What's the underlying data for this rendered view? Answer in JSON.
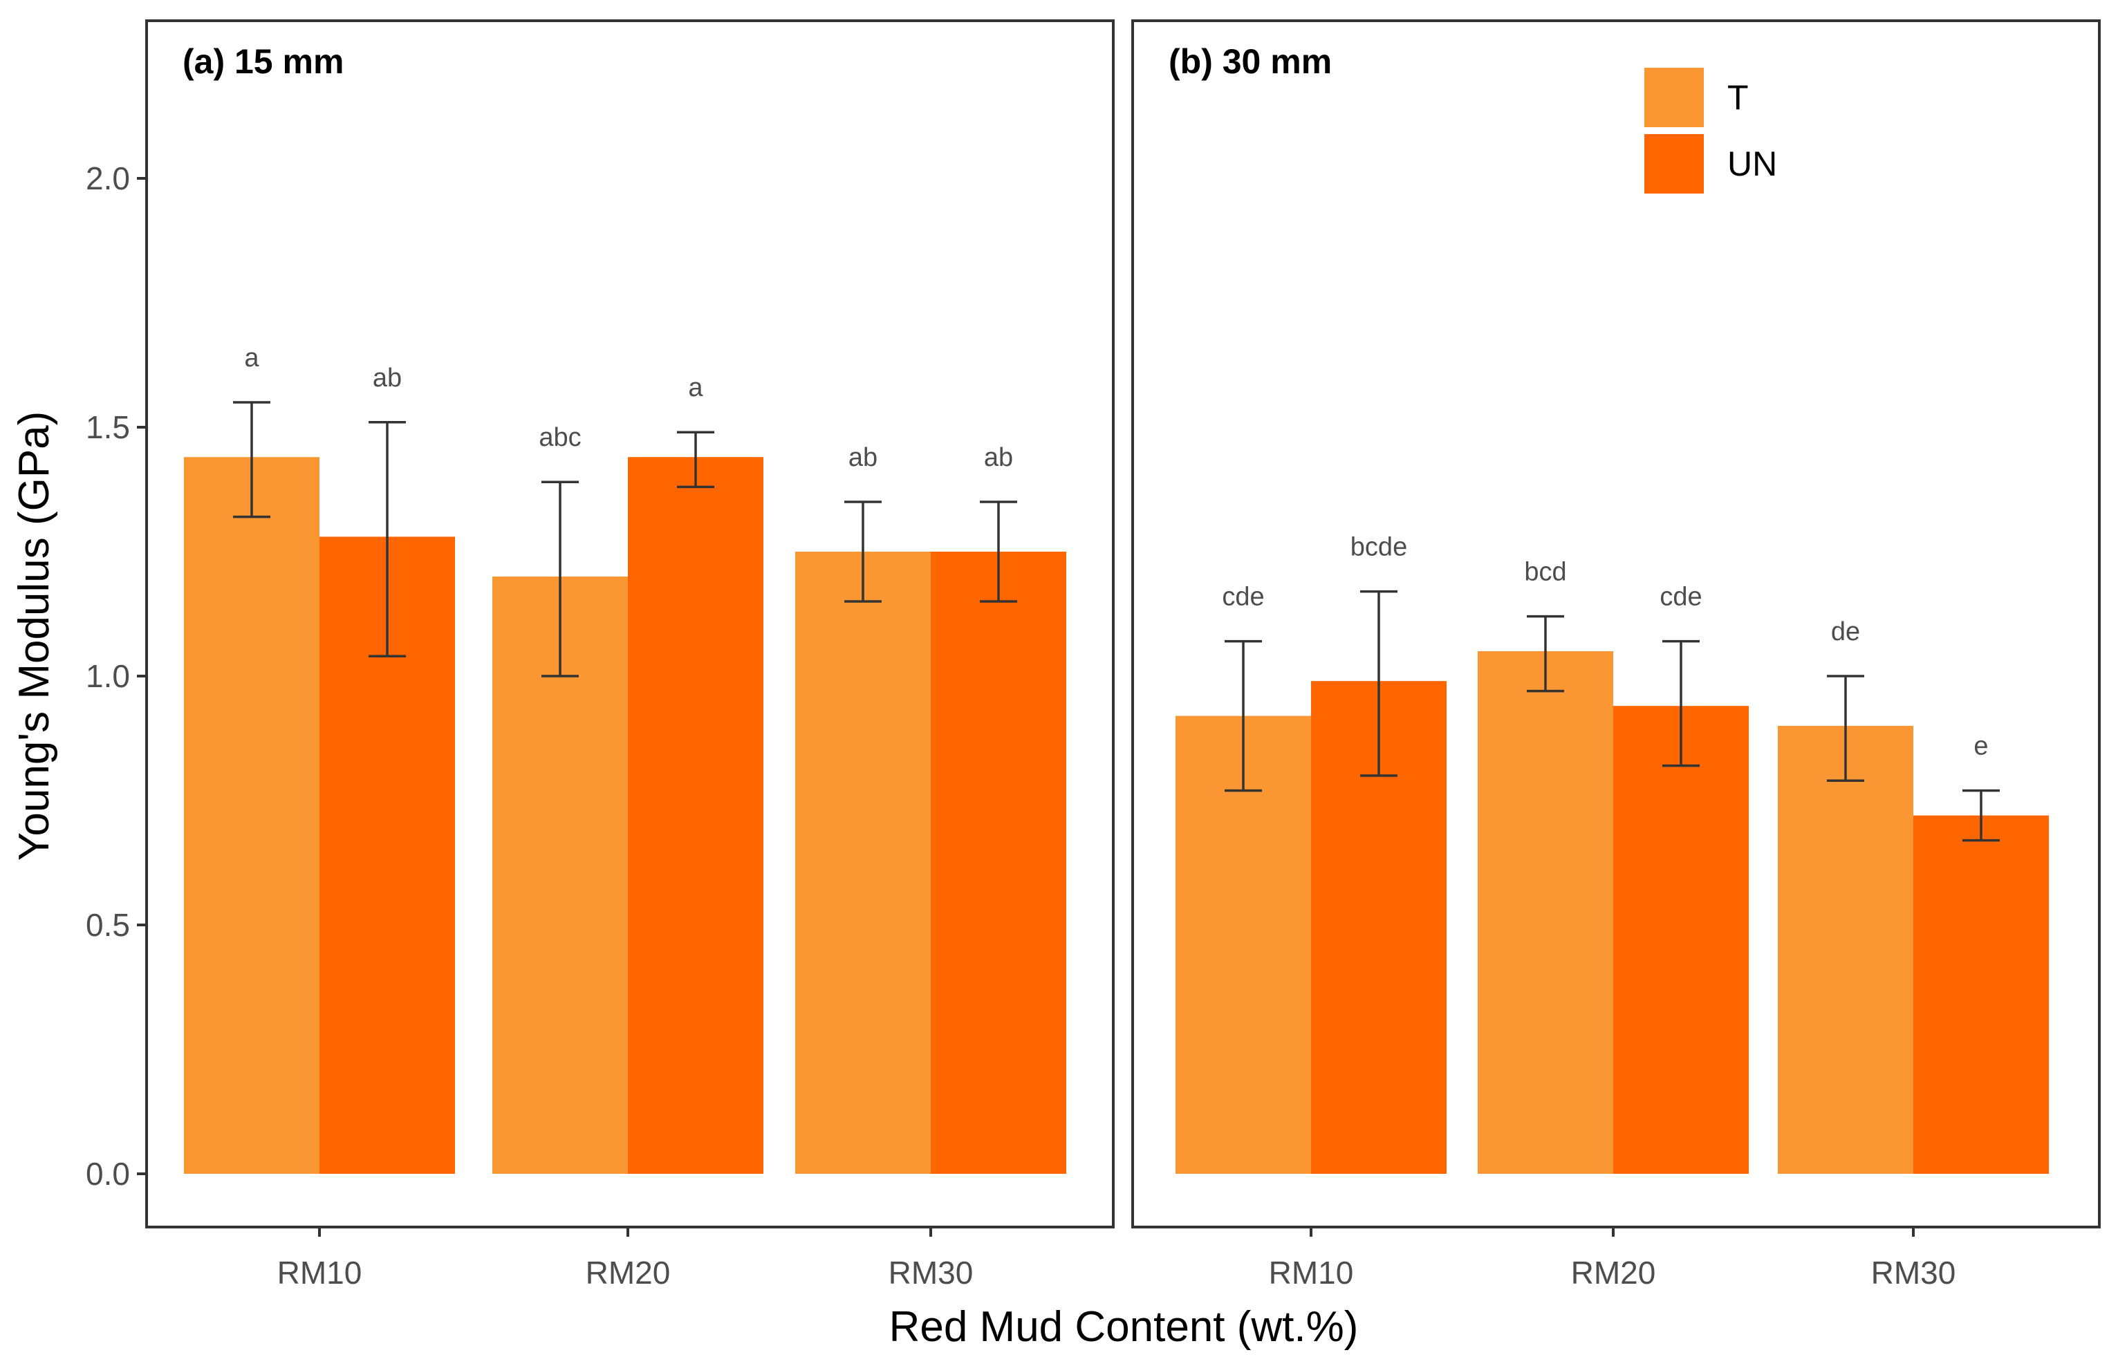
{
  "chart_data": {
    "type": "bar",
    "xlabel": "Red Mud Content (wt.%)",
    "ylabel": "Young's Modulus (GPa)",
    "ylim": [
      -0.1,
      2.35
    ],
    "yticks": [
      "0.0",
      "0.5",
      "1.0",
      "1.5",
      "2.0"
    ],
    "ytick_values": [
      0,
      0.5,
      1.0,
      1.5,
      2.0
    ],
    "categories": [
      "RM10",
      "RM20",
      "RM30"
    ],
    "legend": {
      "placement": "top-right of panel (b)",
      "entries": [
        {
          "name": "T",
          "color": "#fb9733"
        },
        {
          "name": "UN",
          "color": "#ff6600"
        }
      ]
    },
    "grid": false,
    "panels": [
      {
        "title": "(a) 15 mm",
        "series": [
          {
            "name": "T",
            "values": [
              1.44,
              1.2,
              1.25
            ],
            "err_low": [
              1.32,
              1.0,
              1.15
            ],
            "err_high": [
              1.55,
              1.39,
              1.35
            ],
            "labels": [
              "a",
              "abc",
              "ab"
            ]
          },
          {
            "name": "UN",
            "values": [
              1.28,
              1.44,
              1.25
            ],
            "err_low": [
              1.04,
              1.38,
              1.15
            ],
            "err_high": [
              1.51,
              1.49,
              1.35
            ],
            "labels": [
              "ab",
              "a",
              "ab"
            ]
          }
        ]
      },
      {
        "title": "(b) 30 mm",
        "series": [
          {
            "name": "T",
            "values": [
              0.92,
              1.05,
              0.9
            ],
            "err_low": [
              0.77,
              0.97,
              0.79
            ],
            "err_high": [
              1.07,
              1.12,
              1.0
            ],
            "labels": [
              "cde",
              "bcd",
              "de"
            ]
          },
          {
            "name": "UN",
            "values": [
              0.99,
              0.94,
              0.72
            ],
            "err_low": [
              0.8,
              0.82,
              0.67
            ],
            "err_high": [
              1.17,
              1.07,
              0.77
            ],
            "labels": [
              "bcde",
              "cde",
              "e"
            ]
          }
        ]
      }
    ]
  }
}
